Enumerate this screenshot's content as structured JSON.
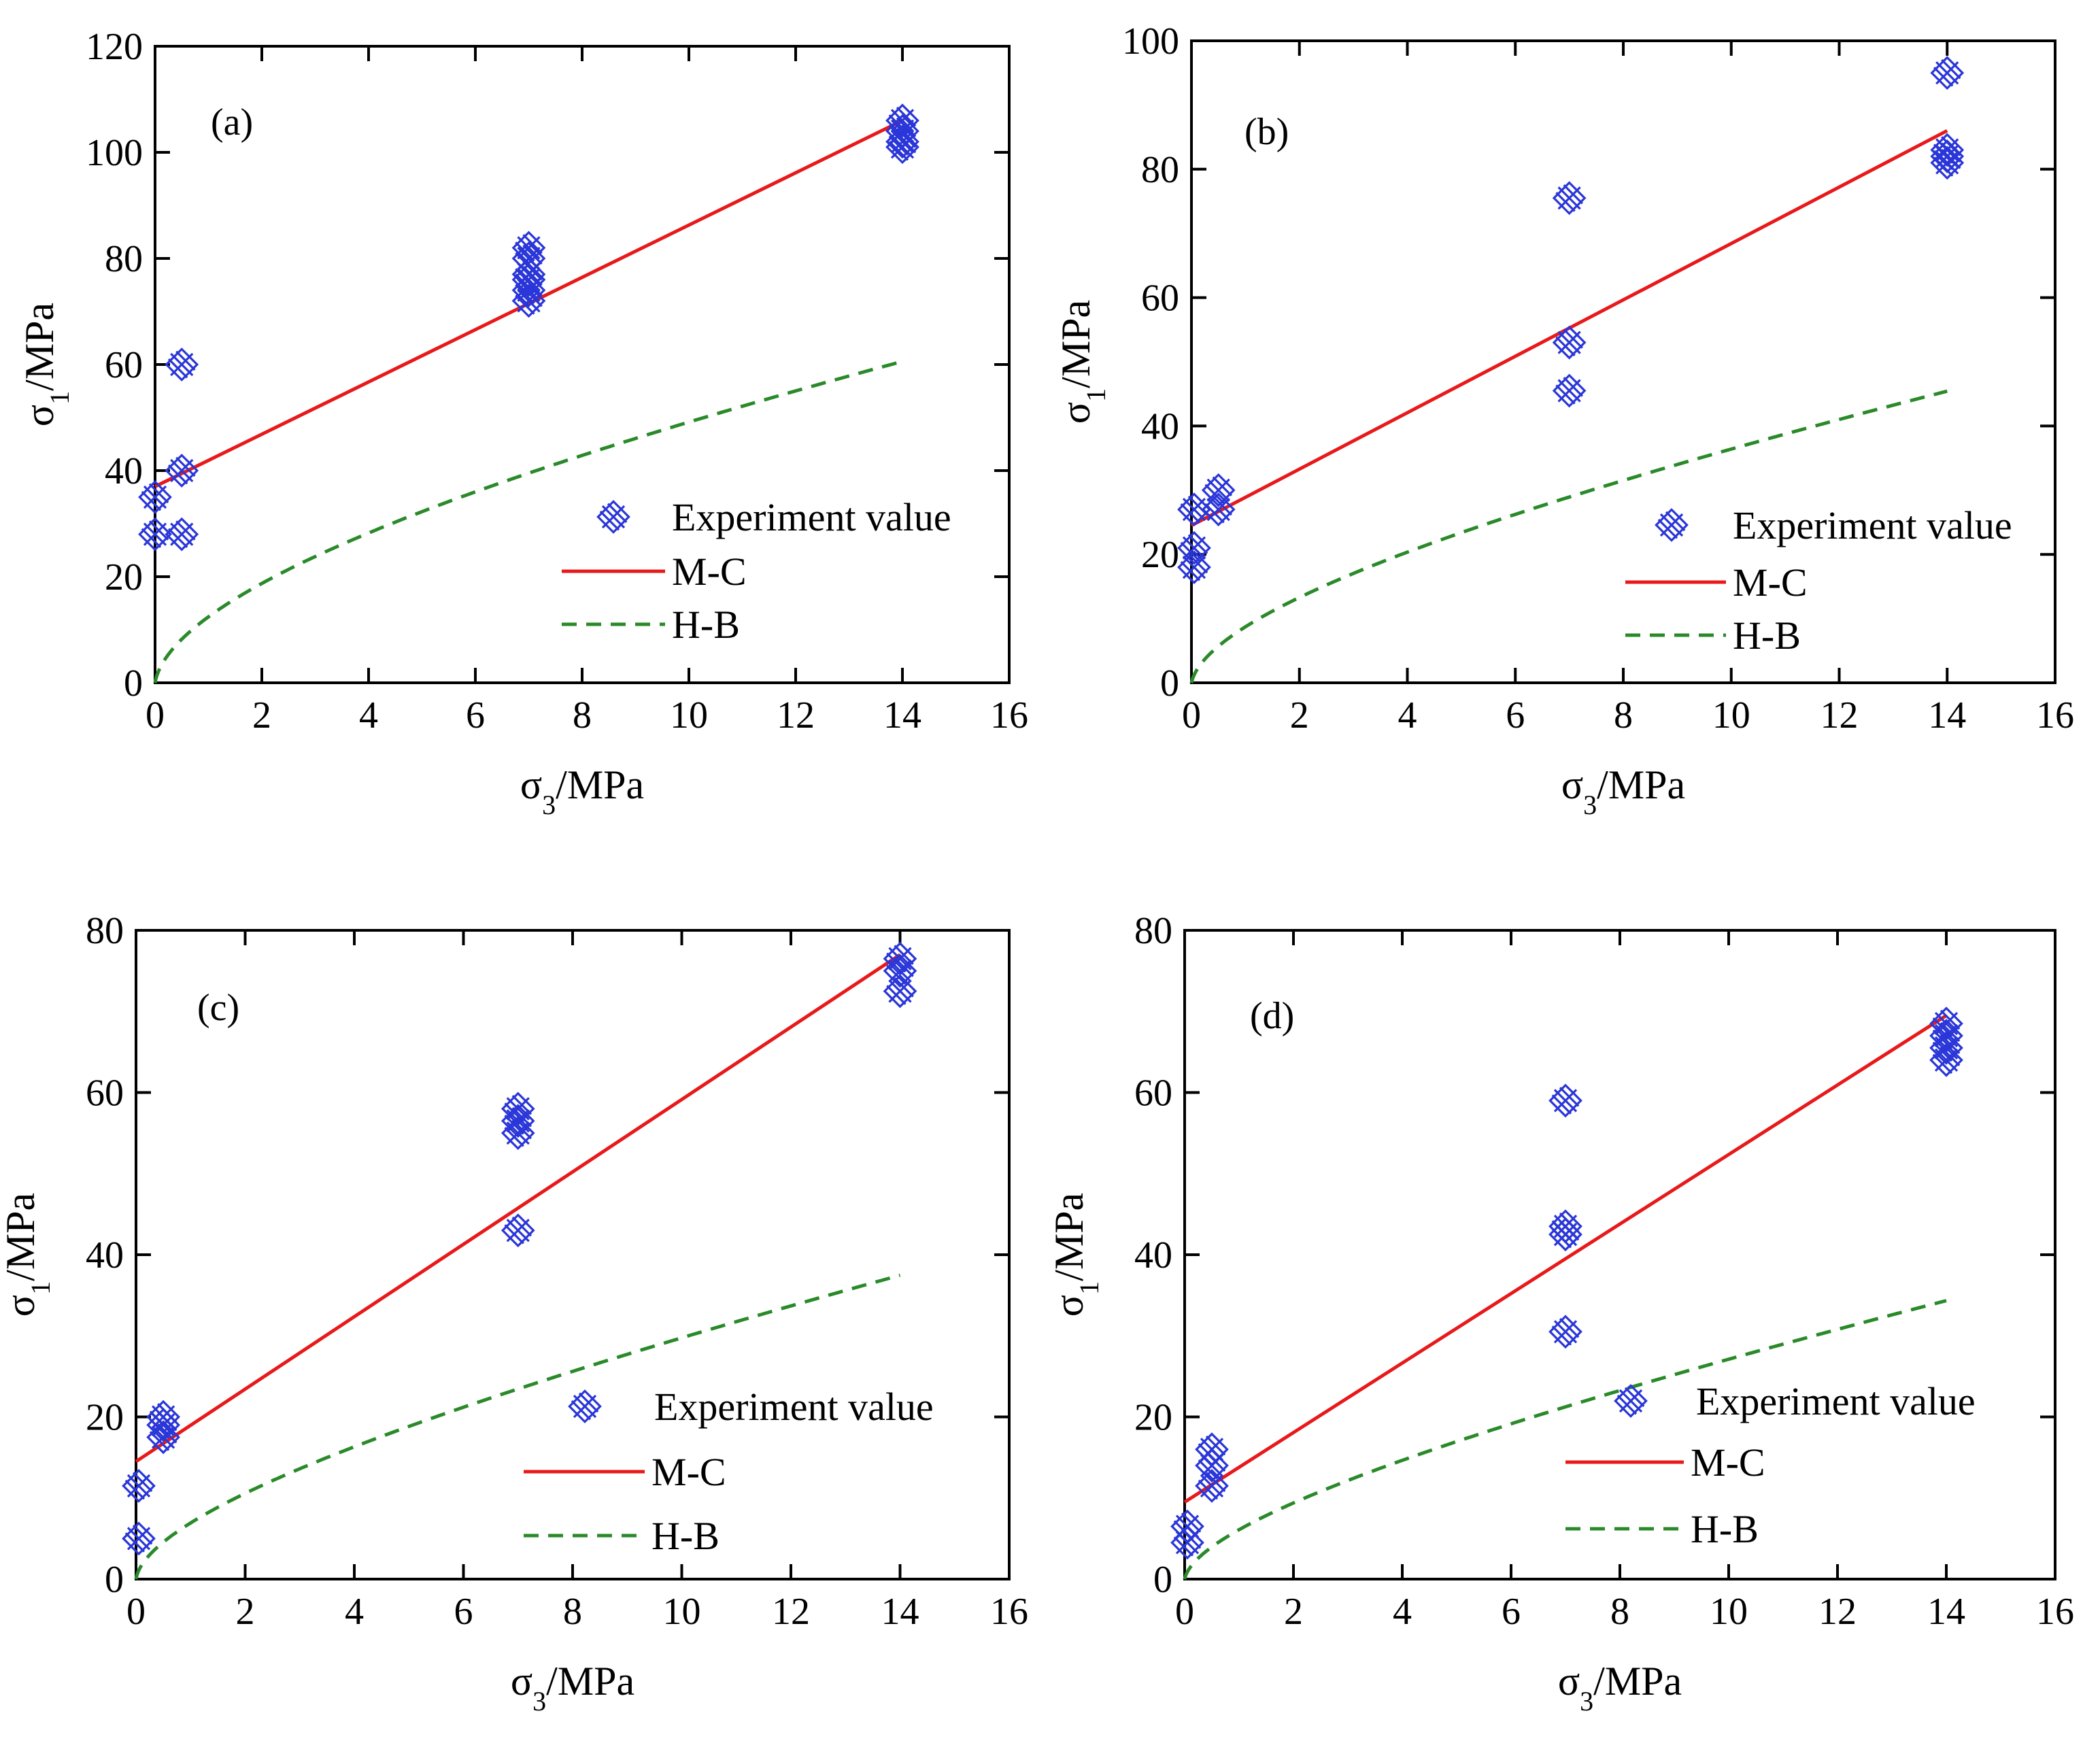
{
  "colors": {
    "experiment": "#2a36d8",
    "mc": "#e8191a",
    "hb": "#2a8a2a",
    "axis": "#000000"
  },
  "chart_data": [
    {
      "type": "scatter",
      "panel": "(a)",
      "xlabel_main": "σ",
      "xlabel_sub": "3",
      "xlabel_unit": "/MPa",
      "ylabel_main": "σ",
      "ylabel_sub": "1",
      "ylabel_unit": "/MPa",
      "xlim": [
        0,
        16
      ],
      "ylim": [
        0,
        120
      ],
      "xticks": [
        0,
        2,
        4,
        6,
        8,
        10,
        12,
        14,
        16
      ],
      "yticks": [
        0,
        20,
        40,
        60,
        80,
        100,
        120
      ],
      "legend": [
        "Experiment value",
        "M-C",
        "H-B"
      ],
      "experiment": {
        "x": [
          0,
          0,
          0.5,
          0.5,
          0.5,
          7,
          7,
          7,
          7,
          7,
          7,
          14,
          14,
          14,
          14
        ],
        "y": [
          35,
          28,
          60,
          40,
          28,
          82,
          80,
          77,
          74,
          72,
          76,
          106,
          104,
          102,
          101
        ]
      },
      "mc": {
        "x": [
          0,
          14
        ],
        "y": [
          37,
          106
        ]
      },
      "hb": {
        "sigma_c": 1.5,
        "m": 110,
        "s": 1,
        "a": 0.5,
        "xmax": 14
      }
    },
    {
      "type": "scatter",
      "panel": "(b)",
      "xlabel_main": "σ",
      "xlabel_sub": "3",
      "xlabel_unit": "/MPa",
      "ylabel_main": "σ",
      "ylabel_sub": "1",
      "ylabel_unit": "/MPa",
      "xlim": [
        0,
        16
      ],
      "ylim": [
        0,
        100
      ],
      "xticks": [
        0,
        2,
        4,
        6,
        8,
        10,
        12,
        14,
        16
      ],
      "yticks": [
        0,
        20,
        40,
        60,
        80,
        100
      ],
      "legend": [
        "Experiment value",
        "M-C",
        "H-B"
      ],
      "experiment": {
        "x": [
          0.05,
          0.05,
          0.05,
          0.5,
          0.5,
          7,
          7,
          7,
          14,
          14,
          14,
          14
        ],
        "y": [
          27,
          21,
          18,
          30,
          27,
          75.5,
          53,
          45.5,
          95,
          83,
          82,
          81
        ]
      },
      "mc": {
        "x": [
          0,
          14
        ],
        "y": [
          24.5,
          86
        ]
      },
      "hb": {
        "sigma_c": 1,
        "m": 75,
        "s": 1,
        "a": 0.5,
        "xmax": 14
      }
    },
    {
      "type": "scatter",
      "panel": "(c)",
      "xlabel_main": "σ",
      "xlabel_sub": "3",
      "xlabel_unit": "/MPa",
      "ylabel_main": "σ",
      "ylabel_sub": "1",
      "ylabel_unit": "/MPa",
      "xlim": [
        0,
        16
      ],
      "ylim": [
        0,
        80
      ],
      "xticks": [
        0,
        2,
        4,
        6,
        8,
        10,
        12,
        14,
        16
      ],
      "yticks": [
        0,
        20,
        40,
        60,
        80
      ],
      "legend": [
        "Experiment value",
        "M-C",
        "H-B"
      ],
      "experiment": {
        "x": [
          0.05,
          0.05,
          0.5,
          0.5,
          0.5,
          7,
          7,
          7,
          7,
          14,
          14,
          14
        ],
        "y": [
          11.5,
          5,
          20,
          19,
          17.5,
          58,
          56.5,
          55,
          43,
          76.5,
          75,
          72.5
        ]
      },
      "mc": {
        "x": [
          0,
          14
        ],
        "y": [
          14.5,
          77
        ]
      },
      "hb": {
        "sigma_c": 0.5,
        "m": 82,
        "s": 1,
        "a": 0.5,
        "xmax": 14
      }
    },
    {
      "type": "scatter",
      "panel": "(d)",
      "xlabel_main": "σ",
      "xlabel_sub": "3",
      "xlabel_unit": "/MPa",
      "ylabel_main": "σ",
      "ylabel_sub": "1",
      "ylabel_unit": "/MPa",
      "xlim": [
        0,
        16
      ],
      "ylim": [
        0,
        80
      ],
      "xticks": [
        0,
        2,
        4,
        6,
        8,
        10,
        12,
        14,
        16
      ],
      "yticks": [
        0,
        20,
        40,
        60,
        80
      ],
      "legend": [
        "Experiment value",
        "M-C",
        "H-B"
      ],
      "experiment": {
        "x": [
          0.05,
          0.05,
          0.5,
          0.5,
          0.5,
          7,
          7,
          7,
          7,
          14,
          14,
          14,
          14
        ],
        "y": [
          6.5,
          4.5,
          16,
          14,
          11.5,
          59,
          43.5,
          42.5,
          30.5,
          68.5,
          67,
          65.5,
          64
        ]
      },
      "mc": {
        "x": [
          0,
          14
        ],
        "y": [
          9.5,
          69.5
        ]
      },
      "hb": {
        "sigma_c": 0.5,
        "m": 62,
        "s": 1,
        "a": 0.5,
        "xmax": 14
      }
    }
  ]
}
